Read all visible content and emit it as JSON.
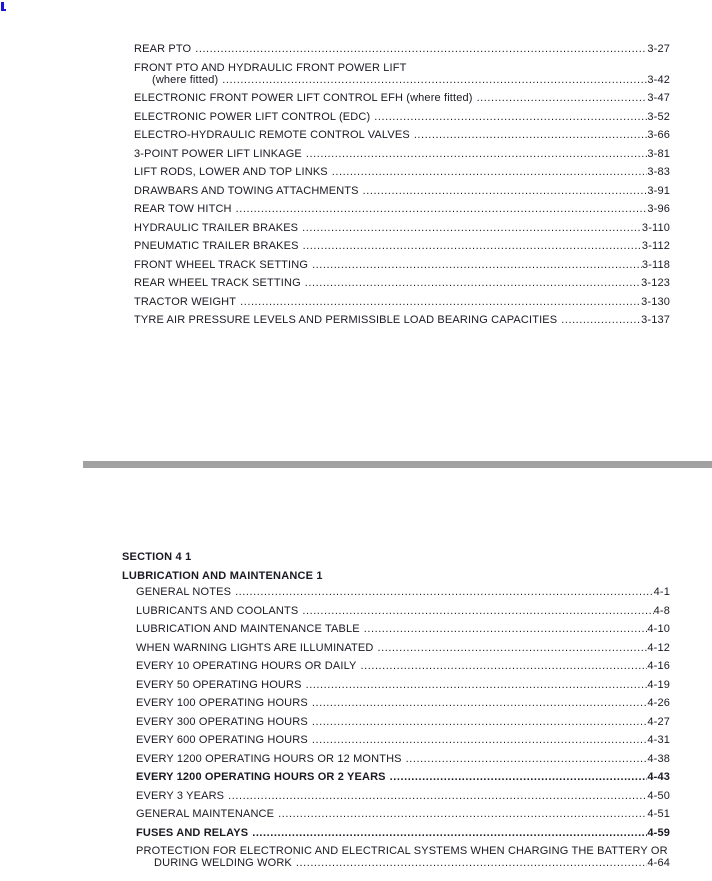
{
  "page": {
    "text_color": "#191922",
    "divider_color": "#a1a1a1",
    "corner_mark_color": "#1a16d8"
  },
  "toc_section_3": {
    "entries": [
      {
        "label": "REAR PTO",
        "page": "3-27"
      },
      {
        "label": "FRONT PTO AND HYDRAULIC FRONT POWER LIFT",
        "label2": "(where fitted)",
        "page": "3-42"
      },
      {
        "label": "ELECTRONIC FRONT POWER LIFT CONTROL EFH (where fitted)",
        "page": "3-47"
      },
      {
        "label": "ELECTRONIC POWER LIFT CONTROL (EDC)",
        "page": "3-52"
      },
      {
        "label": "ELECTRO-HYDRAULIC REMOTE CONTROL VALVES",
        "page": "3-66"
      },
      {
        "label": "3-POINT POWER LIFT LINKAGE",
        "page": "3-81"
      },
      {
        "label": "LIFT RODS, LOWER AND TOP LINKS",
        "page": "3-83"
      },
      {
        "label": "DRAWBARS AND TOWING ATTACHMENTS",
        "page": "3-91"
      },
      {
        "label": "REAR TOW HITCH",
        "page": "3-96"
      },
      {
        "label": "HYDRAULIC TRAILER BRAKES",
        "page": "3-110"
      },
      {
        "label": "PNEUMATIC TRAILER BRAKES",
        "page": "3-112"
      },
      {
        "label": "FRONT WHEEL TRACK SETTING",
        "page": "3-118"
      },
      {
        "label": "REAR WHEEL TRACK SETTING",
        "page": "3-123"
      },
      {
        "label": "TRACTOR WEIGHT",
        "page": "3-130"
      },
      {
        "label": "TYRE AIR PRESSURE LEVELS AND PERMISSIBLE LOAD BEARING CAPACITIES",
        "page": "3-137"
      }
    ]
  },
  "section_4": {
    "section_title": "SECTION 4 1",
    "chapter_title": "LUBRICATION AND MAINTENANCE 1",
    "entries": [
      {
        "label": "GENERAL NOTES",
        "page": "4-1"
      },
      {
        "label": "LUBRICANTS AND COOLANTS",
        "page": "4-8"
      },
      {
        "label": "LUBRICATION AND MAINTENANCE TABLE",
        "page": "4-10"
      },
      {
        "label": "WHEN WARNING LIGHTS ARE ILLUMINATED",
        "page": "4-12"
      },
      {
        "label": "EVERY 10 OPERATING HOURS OR DAILY",
        "page": "4-16"
      },
      {
        "label": "EVERY 50 OPERATING HOURS",
        "page": "4-19"
      },
      {
        "label": "EVERY 100 OPERATING HOURS",
        "page": "4-26"
      },
      {
        "label": "EVERY 300 OPERATING HOURS",
        "page": "4-27"
      },
      {
        "label": "EVERY 600 OPERATING HOURS",
        "page": "4-31"
      },
      {
        "label": "EVERY 1200 OPERATING HOURS OR 12 MONTHS",
        "page": "4-38"
      },
      {
        "label": "EVERY 1200 OPERATING HOURS OR 2 YEARS",
        "page": "4-43",
        "bold": true
      },
      {
        "label": "EVERY 3 YEARS",
        "page": "4-50"
      },
      {
        "label": "GENERAL MAINTENANCE",
        "page": "4-51"
      },
      {
        "label": "FUSES AND RELAYS",
        "page": "4-59",
        "bold": true
      },
      {
        "label": "PROTECTION FOR ELECTRONIC AND ELECTRICAL SYSTEMS WHEN CHARGING THE BATTERY OR",
        "label2": "DURING WELDING WORK",
        "page": "4-64"
      }
    ]
  }
}
